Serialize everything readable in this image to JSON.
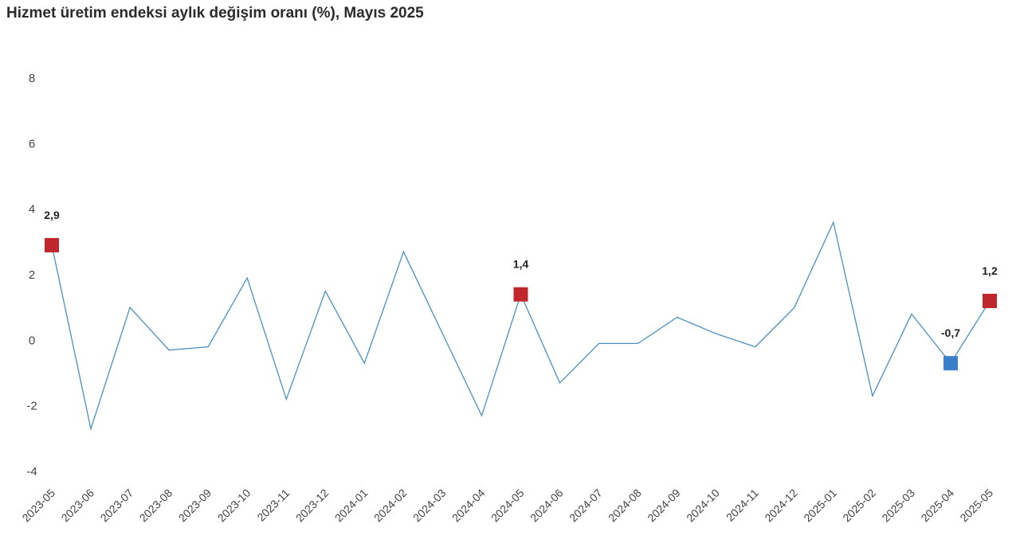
{
  "chart_data": {
    "type": "line",
    "title": "Hizmet üretim endeksi aylık değişim oranı (%), Mayıs 2025",
    "xlabel": "",
    "ylabel": "",
    "ylim": [
      -4,
      8
    ],
    "yticks": [
      "8",
      "6",
      "4",
      "2",
      "0",
      "-2",
      "-4"
    ],
    "grid": false,
    "categories": [
      "2023-05",
      "2023-06",
      "2023-07",
      "2023-08",
      "2023-09",
      "2023-10",
      "2023-11",
      "2023-12",
      "2024-01",
      "2024-02",
      "2024-03",
      "2024-04",
      "2024-05",
      "2024-06",
      "2024-07",
      "2024-08",
      "2024-09",
      "2024-10",
      "2024-11",
      "2024-12",
      "2025-01",
      "2025-02",
      "2025-03",
      "2025-04",
      "2025-05"
    ],
    "series": [
      {
        "color": "#4a90c2",
        "values": [
          2.9,
          -2.7,
          1.0,
          -0.3,
          -0.2,
          1.9,
          -1.8,
          1.5,
          -0.7,
          2.7,
          0.2,
          -2.3,
          1.4,
          -1.3,
          -0.1,
          -0.1,
          0.7,
          0.2,
          -0.2,
          1.0,
          3.6,
          -1.7,
          0.8,
          -0.7,
          1.2
        ]
      }
    ],
    "highlights": [
      {
        "index": 0,
        "label": "2,9",
        "color": "#c0272d"
      },
      {
        "index": 12,
        "label": "1,4",
        "color": "#c0272d"
      },
      {
        "index": 23,
        "label": "-0,7",
        "color": "#3a7dc9"
      },
      {
        "index": 24,
        "label": "1,2",
        "color": "#c0272d"
      }
    ]
  }
}
